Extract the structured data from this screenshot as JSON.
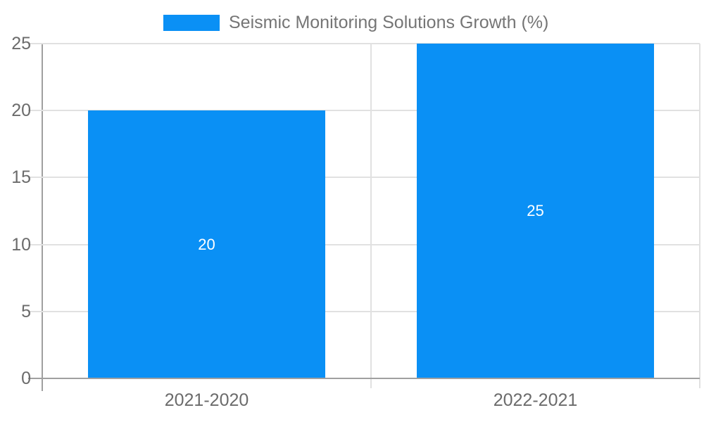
{
  "legend": {
    "label": "Seismic Monitoring Solutions Growth (%)"
  },
  "chart_data": {
    "type": "bar",
    "title": "Seismic Monitoring Solutions Growth (%)",
    "categories": [
      "2021-2020",
      "2022-2021"
    ],
    "values": [
      20,
      25
    ],
    "data_labels": [
      "20",
      "25"
    ],
    "series": [
      {
        "name": "Seismic Monitoring Solutions Growth (%)",
        "values": [
          20,
          25
        ]
      }
    ],
    "xlabel": "",
    "ylabel": "",
    "ylim": [
      0,
      25
    ],
    "yticks": [
      0,
      5,
      10,
      15,
      20,
      25
    ],
    "grid": true,
    "legend_position": "top-center"
  },
  "colors": {
    "bar": "#0a90f5",
    "data_label": "#ffffff",
    "axis_text": "#6b6b6b",
    "legend_text": "#757575",
    "gridline": "#e1e1e1",
    "axis_line": "#a0a0a0",
    "background": "#ffffff"
  }
}
